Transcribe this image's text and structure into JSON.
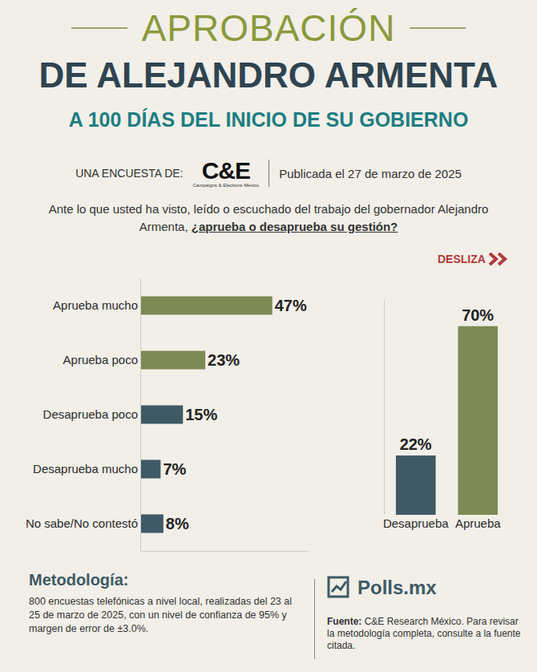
{
  "header": {
    "title_line1": "APROBACIÓN",
    "title_line2": "DE ALEJANDRO ARMENTA",
    "title_line3": "A 100 DÍAS DEL INICIO DE SU GOBIERNO",
    "survey_by": "UNA ENCUESTA DE:",
    "pollster_logo": "C&E",
    "pollster_name": "Campaigns & Elections México",
    "published": "Publicada el 27 de marzo de 2025",
    "question": "Ante lo que usted ha visto, leído o escuchado del trabajo del gobernador Alejandro Armenta,",
    "question_emphasis": "¿aprueba o desaprueba su gestión?",
    "swipe": "DESLIZA"
  },
  "chart_data": [
    {
      "type": "bar",
      "orientation": "horizontal",
      "categories": [
        "Aprueba mucho",
        "Aprueba poco",
        "Desaprueba poco",
        "Desaprueba mucho",
        "No sabe/No contestó"
      ],
      "values": [
        47,
        23,
        15,
        7,
        8
      ],
      "value_labels": [
        "47%",
        "23%",
        "15%",
        "7%",
        "8%"
      ],
      "colors": [
        "#7d8a55",
        "#7d8a55",
        "#3f5a66",
        "#3f5a66",
        "#3f5a66"
      ],
      "data_labels": true,
      "xlim": [
        0,
        60
      ],
      "xticks": [],
      "tick_labels": "y",
      "grid": false
    },
    {
      "type": "bar",
      "categories": [
        "Desaprueba",
        "Aprueba"
      ],
      "values": [
        22,
        70
      ],
      "value_labels": [
        "22%",
        "70%"
      ],
      "colors": [
        "#3f5a66",
        "#7d8a55"
      ],
      "data_labels": true,
      "ylim": [
        0,
        80
      ],
      "yticks": [],
      "tick_labels": "x",
      "grid": false
    }
  ],
  "footer": {
    "methodology_title": "Metodología:",
    "methodology": "800 encuestas telefónicas a nivel local, realizadas del 23 al 25 de marzo de 2025, con un nivel de confianza de 95% y margen de error de ±3.0%.",
    "logo": "Polls.mx",
    "source_label": "Fuente:",
    "source": "C&E Research México. Para revisar la metodología completa, consulte a  la fuente citada."
  }
}
